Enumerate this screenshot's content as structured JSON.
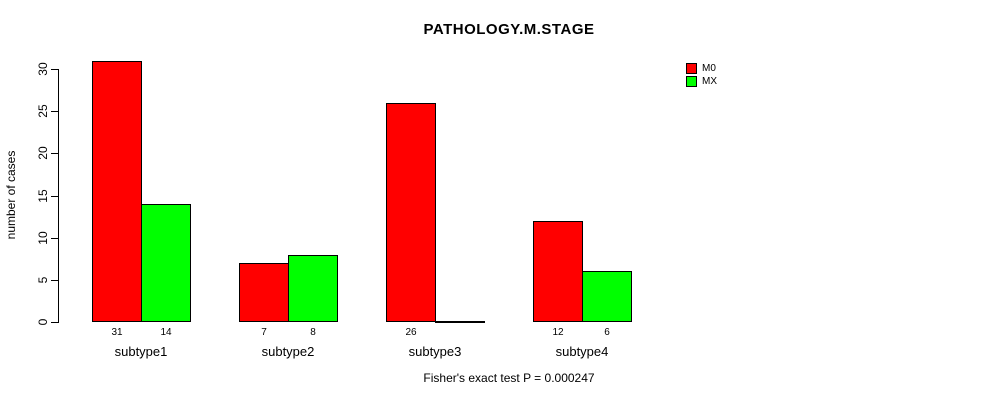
{
  "title": "PATHOLOGY.M.STAGE",
  "footer": "Fisher's exact test P = 0.000247",
  "chart_data": {
    "type": "bar",
    "title": "PATHOLOGY.M.STAGE",
    "categories": [
      "subtype1",
      "subtype2",
      "subtype3",
      "subtype4"
    ],
    "series": [
      {
        "name": "M0",
        "color": "#FF0000",
        "values": [
          31,
          7,
          26,
          12
        ]
      },
      {
        "name": "MX",
        "color": "#00FF00",
        "values": [
          14,
          8,
          0,
          6
        ]
      }
    ],
    "ylabel": "number of cases",
    "xlabel": "",
    "yticks": [
      0,
      5,
      10,
      15,
      20,
      25,
      30
    ],
    "ylim": [
      0,
      31
    ],
    "grid": false,
    "legend_position": "top-right",
    "bar_value_labels": true,
    "zero_value_labels_hidden": true,
    "annotation": "Fisher's exact test P = 0.000247"
  }
}
